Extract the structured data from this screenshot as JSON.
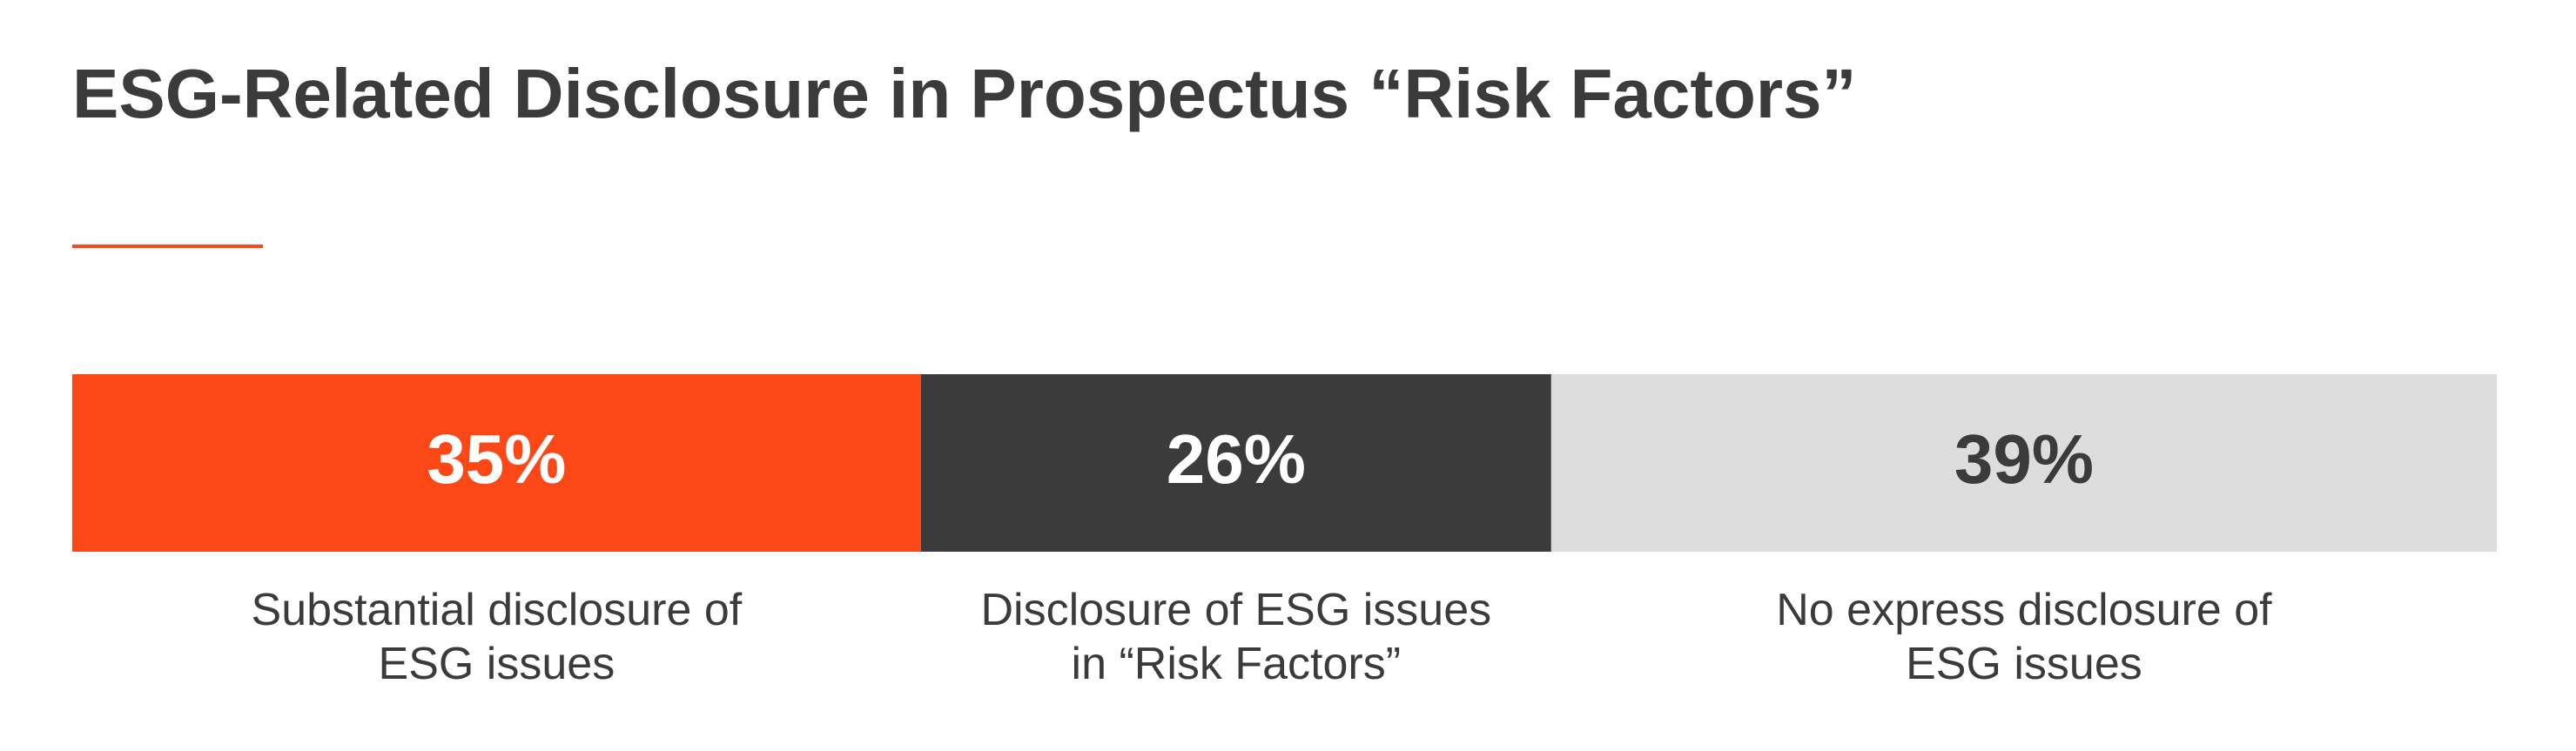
{
  "chart_data": {
    "type": "stacked-bar",
    "title": "ESG-Related Disclosure in Prospectus “Risk Factors”",
    "categories": [
      "Substantial disclosure of ESG issues",
      "Disclosure of ESG issues in “Risk Factors”",
      "No express disclosure of ESG issues"
    ],
    "values": [
      35,
      26,
      39
    ],
    "value_labels": [
      "35%",
      "26%",
      "39%"
    ],
    "colors": [
      "#fc4716",
      "#3b3b3b",
      "#dddddd"
    ],
    "label_colors": [
      "#ffffff",
      "#ffffff",
      "#3b3b3b"
    ]
  }
}
